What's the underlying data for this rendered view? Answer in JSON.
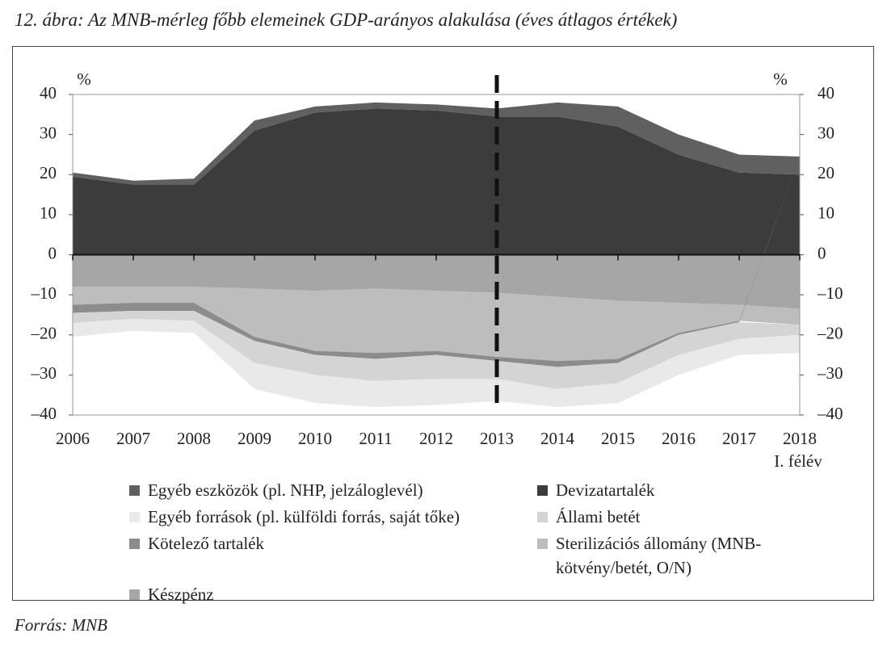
{
  "chart_data": {
    "type": "stacked_area",
    "title": "12. ábra: Az MNB-mérleg főbb elemeinek GDP-arányos alakulása (éves átlagos értékek)",
    "y_label": "%",
    "y2_label": "%",
    "categories": [
      "2006",
      "2007",
      "2008",
      "2009",
      "2010",
      "2011",
      "2012",
      "2013",
      "2014",
      "2015",
      "2016",
      "2017",
      "2018"
    ],
    "x_annotation": "I. félév",
    "vline": "2013",
    "ylim": [
      -40,
      40
    ],
    "yticks": [
      {
        "value": -40,
        "label": "–40"
      },
      {
        "value": -30,
        "label": "–30"
      },
      {
        "value": -20,
        "label": "–20"
      },
      {
        "value": -10,
        "label": "–10"
      },
      0,
      10,
      20,
      30,
      40
    ],
    "y2lim": [
      -40,
      40
    ],
    "y2ticks": [
      {
        "value": -40,
        "label": "–40"
      },
      {
        "value": -30,
        "label": "–30"
      },
      {
        "value": -20,
        "label": "–20"
      },
      {
        "value": -10,
        "label": "–10"
      },
      0,
      10,
      20,
      30,
      40
    ],
    "series": [
      {
        "name": "Devizatartalék",
        "color": "#3c3c3c",
        "values": [
          19.5,
          17.5,
          17.5,
          31,
          35.5,
          36.5,
          36,
          34.5,
          34.5,
          32,
          25,
          20.5,
          20
        ]
      },
      {
        "name": "Egyéb eszközök (pl. NHP, jelzáloglevél)",
        "color": "#606060",
        "values": [
          1,
          1,
          1.5,
          2.5,
          1.5,
          1.5,
          1.5,
          2,
          3.5,
          5,
          5,
          4.5,
          4.5
        ]
      },
      {
        "name": "Készpénz",
        "color": "#a6a6a6",
        "values": [
          -8,
          -8,
          -8,
          -8.5,
          -9,
          -8.5,
          -9,
          -9.5,
          -10.5,
          -11.5,
          -12,
          -12.5,
          -13.5
        ]
      },
      {
        "name": "Sterilizációs állomány (MNB-kötvény/betét, O/N)",
        "color": "#bdbdbd",
        "values": [
          -4.5,
          -4,
          -4,
          -12,
          -15,
          -16,
          -15,
          -16,
          -16,
          -14.5,
          -7.5,
          -4,
          -4
        ]
      },
      {
        "name": "Kötelező tartalék",
        "color": "#8c8c8c",
        "values": [
          -2,
          -2,
          -2,
          -1,
          -1,
          -1.5,
          -1,
          -1,
          -1.5,
          -1,
          -0.5,
          -0.3,
          0
        ]
      },
      {
        "name": "Állami betét",
        "color": "#d4d4d4",
        "values": [
          -2.5,
          -2,
          -2.5,
          -5.5,
          -5,
          -5.5,
          -6,
          -4.5,
          -5.5,
          -5,
          -5,
          -4.2,
          -2.5
        ]
      },
      {
        "name": "Egyéb források (pl. külföldi forrás, saját tőke)",
        "color": "#e9e9e9",
        "values": [
          -3.5,
          -3,
          -3,
          -6.5,
          -7,
          -6.5,
          -6.5,
          -5.5,
          -4.5,
          -5,
          -5,
          -4,
          -4.5
        ]
      }
    ],
    "source": "Forrás: MNB"
  }
}
